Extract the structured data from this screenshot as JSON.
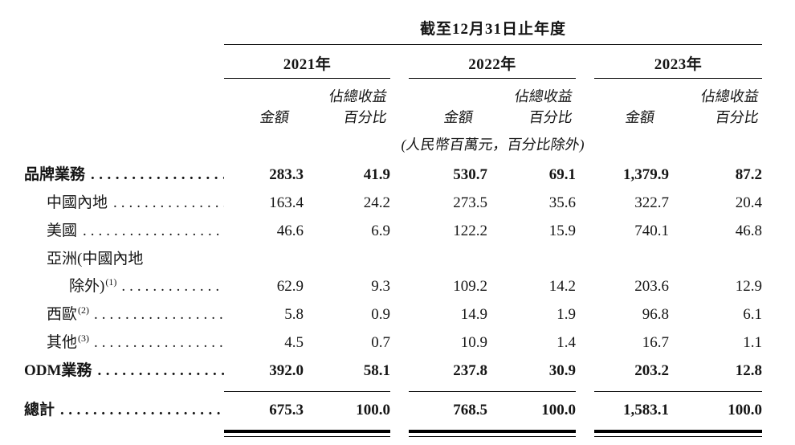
{
  "table": {
    "period_header": "截至12月31日止年度",
    "unit_note": "(人民幣百萬元，百分比除外)",
    "year_groups": [
      {
        "label": "2021年"
      },
      {
        "label": "2022年"
      },
      {
        "label": "2023年"
      }
    ],
    "col_headers": {
      "amount": "金額",
      "pct_line1": "佔總收益",
      "pct_line2": "百分比"
    },
    "rows": [
      {
        "label": "品牌業務",
        "bold": true,
        "indent": 0,
        "values": [
          "283.3",
          "41.9",
          "530.7",
          "69.1",
          "1,379.9",
          "87.2"
        ]
      },
      {
        "label": "中國內地",
        "bold": false,
        "indent": 1,
        "values": [
          "163.4",
          "24.2",
          "273.5",
          "35.6",
          "322.7",
          "20.4"
        ]
      },
      {
        "label": "美國",
        "bold": false,
        "indent": 1,
        "values": [
          "46.6",
          "6.9",
          "122.2",
          "15.9",
          "740.1",
          "46.8"
        ]
      },
      {
        "label": "亞洲(中國內地",
        "label_line2": "除外)",
        "superscript": "(1)",
        "bold": false,
        "indent": 1,
        "values": [
          "62.9",
          "9.3",
          "109.2",
          "14.2",
          "203.6",
          "12.9"
        ]
      },
      {
        "label": "西歐",
        "superscript": "(2)",
        "bold": false,
        "indent": 1,
        "values": [
          "5.8",
          "0.9",
          "14.9",
          "1.9",
          "96.8",
          "6.1"
        ]
      },
      {
        "label": "其他",
        "superscript": "(3)",
        "bold": false,
        "indent": 1,
        "values": [
          "4.5",
          "0.7",
          "10.9",
          "1.4",
          "16.7",
          "1.1"
        ]
      },
      {
        "label": "ODM業務",
        "bold": true,
        "indent": 0,
        "rule_after": "single",
        "values": [
          "392.0",
          "58.1",
          "237.8",
          "30.9",
          "203.2",
          "12.8"
        ]
      },
      {
        "label": "總計",
        "bold": true,
        "indent": 0,
        "rule_after": "double",
        "values": [
          "675.3",
          "100.0",
          "768.5",
          "100.0",
          "1,583.1",
          "100.0"
        ]
      }
    ],
    "colors": {
      "text": "#151515",
      "rule": "#000000",
      "background": "#ffffff"
    }
  }
}
